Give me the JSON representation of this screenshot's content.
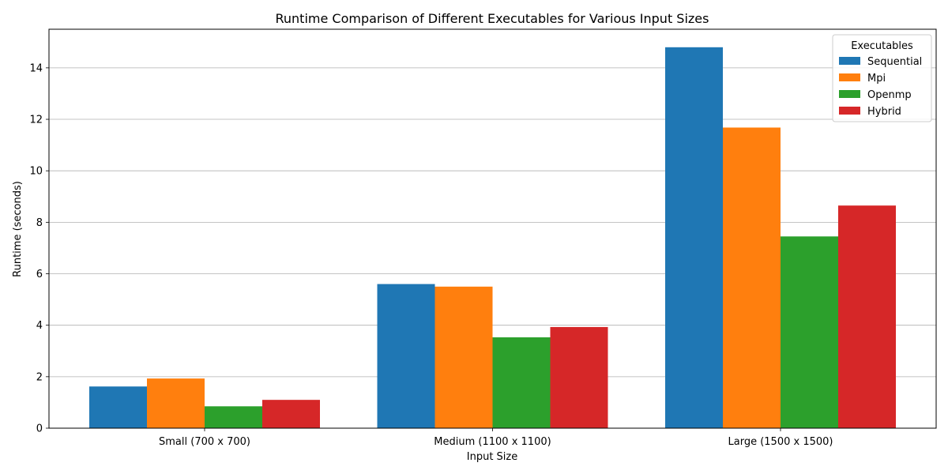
{
  "chart_data": {
    "type": "bar",
    "title": "Runtime Comparison of Different Executables for Various Input Sizes",
    "xlabel": "Input Size",
    "ylabel": "Runtime (seconds)",
    "categories": [
      "Small (700 x 700)",
      "Medium (1100 x 1100)",
      "Large (1500 x 1500)"
    ],
    "series": [
      {
        "name": "Sequential",
        "color": "#1f77b4",
        "values": [
          1.62,
          5.6,
          14.8
        ]
      },
      {
        "name": "Mpi",
        "color": "#ff7f0e",
        "values": [
          1.93,
          5.5,
          11.68
        ]
      },
      {
        "name": "Openmp",
        "color": "#2ca02c",
        "values": [
          0.85,
          3.53,
          7.45
        ]
      },
      {
        "name": "Hybrid",
        "color": "#d62728",
        "values": [
          1.1,
          3.93,
          8.65
        ]
      }
    ],
    "ylim": [
      0,
      15.5
    ],
    "yticks": [
      0,
      2,
      4,
      6,
      8,
      10,
      12,
      14
    ],
    "grid": "y",
    "legend": {
      "title": "Executables",
      "position": "top-right"
    }
  }
}
